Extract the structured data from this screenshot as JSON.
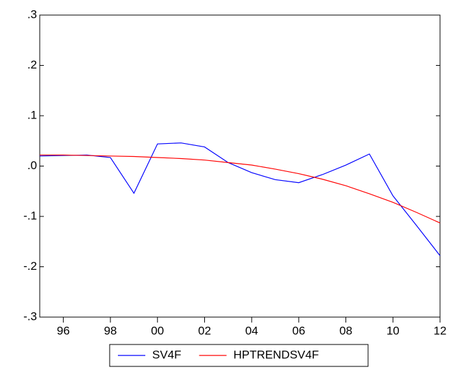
{
  "chart_data": {
    "type": "line",
    "x": [
      1995,
      1996,
      1997,
      1998,
      1999,
      2000,
      2001,
      2002,
      2003,
      2004,
      2005,
      2006,
      2007,
      2008,
      2009,
      2010,
      2011,
      2012
    ],
    "series": [
      {
        "name": "SV4F",
        "color": "#0000ff",
        "values": [
          0.02,
          0.021,
          0.022,
          0.017,
          -0.054,
          0.044,
          0.046,
          0.038,
          0.007,
          -0.013,
          -0.027,
          -0.033,
          -0.017,
          0.002,
          0.024,
          -0.059,
          -0.118,
          -0.178
        ]
      },
      {
        "name": "HPTRENDSV4F",
        "color": "#ff0000",
        "values": [
          0.022,
          0.022,
          0.021,
          0.02,
          0.019,
          0.017,
          0.015,
          0.012,
          0.007,
          0.002,
          -0.006,
          -0.015,
          -0.026,
          -0.039,
          -0.055,
          -0.072,
          -0.092,
          -0.113
        ]
      }
    ],
    "xlim": [
      1995,
      2012
    ],
    "xticks": [
      {
        "value": 1996,
        "label": "96"
      },
      {
        "value": 1998,
        "label": "98"
      },
      {
        "value": 2000,
        "label": "00"
      },
      {
        "value": 2002,
        "label": "02"
      },
      {
        "value": 2004,
        "label": "04"
      },
      {
        "value": 2006,
        "label": "06"
      },
      {
        "value": 2008,
        "label": "08"
      },
      {
        "value": 2010,
        "label": "10"
      },
      {
        "value": 2012,
        "label": "12"
      }
    ],
    "ylim": [
      -0.3,
      0.3
    ],
    "yticks": [
      {
        "value": -0.3,
        "label": "-.3"
      },
      {
        "value": -0.2,
        "label": "-.2"
      },
      {
        "value": -0.1,
        "label": "-.1"
      },
      {
        "value": 0,
        "label": ".0"
      },
      {
        "value": 0.1,
        "label": ".1"
      },
      {
        "value": 0.2,
        "label": ".2"
      },
      {
        "value": 0.3,
        "label": ".3"
      }
    ],
    "legend": "bottom"
  }
}
